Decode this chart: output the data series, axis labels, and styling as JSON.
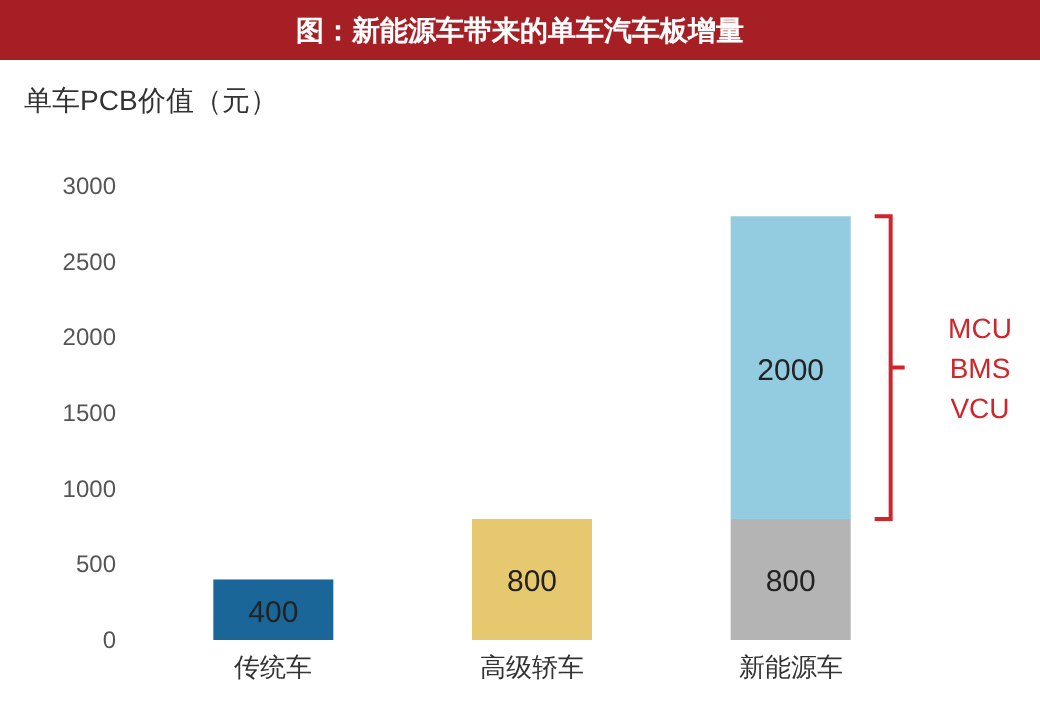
{
  "chart_data": {
    "type": "bar",
    "title": "图：新能源车带来的单车汽车板增量",
    "ylabel": "单车PCB价值（元）",
    "categories": [
      "传统车",
      "高级轿车",
      "新能源车"
    ],
    "stacked": true,
    "data_labels": true,
    "grid": false,
    "series": [
      {
        "colors": [
          "#1b6698",
          "#e6c86e",
          "#b4b4b4"
        ],
        "values": [
          400,
          800,
          800
        ]
      },
      {
        "color": "#93cbe0",
        "values": [
          null,
          null,
          2000
        ]
      }
    ],
    "ylim": [
      0,
      3000
    ],
    "yticks": [
      0,
      500,
      1000,
      1500,
      2000,
      2500,
      3000
    ],
    "annotations": [
      "MCU BMS VCU"
    ]
  }
}
